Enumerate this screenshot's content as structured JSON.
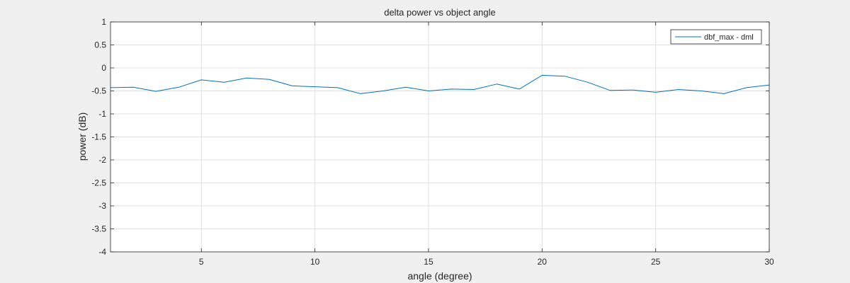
{
  "chart_data": {
    "type": "line",
    "title": "delta power vs object angle",
    "xlabel": "angle (degree)",
    "ylabel": "power (dB)",
    "xlim": [
      1,
      30
    ],
    "ylim": [
      -4,
      1
    ],
    "x_ticks": [
      5,
      10,
      15,
      20,
      25,
      30
    ],
    "y_ticks": [
      -4,
      -3.5,
      -3,
      -2.5,
      -2,
      -1.5,
      -1,
      -0.5,
      0,
      0.5,
      1
    ],
    "x_tick_labels": [
      "5",
      "10",
      "15",
      "20",
      "25",
      "30"
    ],
    "y_tick_labels": [
      "-4",
      "-3.5",
      "-3",
      "-2.5",
      "-2",
      "-1.5",
      "-1",
      "-0.5",
      "0",
      "0.5",
      "1"
    ],
    "grid": true,
    "legend_position": "top-right",
    "series": [
      {
        "name": "dbf_max - dml",
        "color": "#0072bd",
        "x": [
          1,
          2,
          3,
          4,
          5,
          6,
          7,
          8,
          9,
          10,
          11,
          12,
          13,
          14,
          15,
          16,
          17,
          18,
          19,
          20,
          21,
          22,
          23,
          24,
          25,
          26,
          27,
          28,
          29,
          30
        ],
        "y": [
          -0.43,
          -0.42,
          -0.51,
          -0.42,
          -0.26,
          -0.31,
          -0.22,
          -0.25,
          -0.39,
          -0.41,
          -0.43,
          -0.56,
          -0.5,
          -0.42,
          -0.5,
          -0.46,
          -0.47,
          -0.35,
          -0.46,
          -0.16,
          -0.18,
          -0.31,
          -0.49,
          -0.48,
          -0.53,
          -0.47,
          -0.5,
          -0.56,
          -0.43,
          -0.37
        ]
      }
    ]
  }
}
